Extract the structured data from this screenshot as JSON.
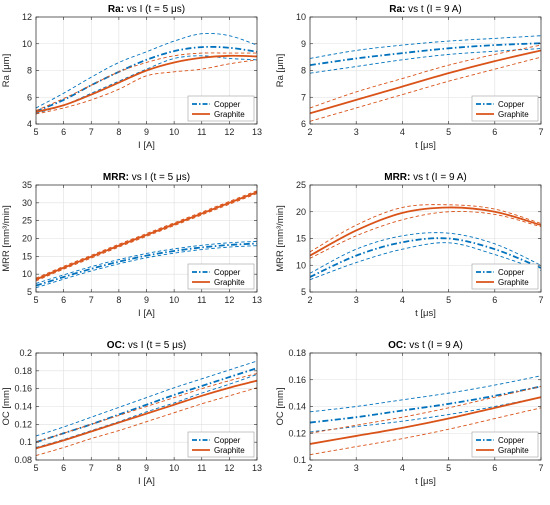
{
  "colors": {
    "copper": "#0072BD",
    "graphite": "#D95319",
    "axis": "#262626",
    "grid": "#dfdfdf"
  },
  "chart_data": [
    {
      "type": "line",
      "title_bold": "Ra:",
      "title_rest": " vs I (t = 5 μs)",
      "xlabel": "I [A]",
      "ylabel": "Ra [μm]",
      "xlim": [
        5,
        13
      ],
      "ylim": [
        4,
        12
      ],
      "xticks": [
        5,
        6,
        7,
        8,
        9,
        10,
        11,
        12,
        13
      ],
      "yticks": [
        4,
        6,
        8,
        10,
        12
      ],
      "grid": true,
      "legend_position": "bottom-right",
      "series": [
        {
          "name": "Copper",
          "key": "copper",
          "style": "dashdot",
          "x": [
            5,
            6,
            7,
            8,
            9,
            10,
            11,
            12,
            13
          ],
          "y": [
            4.95,
            5.8,
            6.9,
            7.9,
            8.8,
            9.45,
            9.75,
            9.7,
            9.4
          ],
          "lower": [
            4.8,
            5.4,
            6.3,
            7.2,
            8.1,
            8.9,
            9.1,
            8.9,
            8.8
          ],
          "upper": [
            5.2,
            6.3,
            7.5,
            8.6,
            9.4,
            10.2,
            10.75,
            10.6,
            9.9
          ]
        },
        {
          "name": "Graphite",
          "key": "graphite",
          "style": "solid",
          "x": [
            5,
            6,
            7,
            8,
            9,
            10,
            11,
            12,
            13
          ],
          "y": [
            4.9,
            5.4,
            6.2,
            7.1,
            8.0,
            8.6,
            8.95,
            9.1,
            9.05
          ],
          "lower": [
            4.75,
            5.2,
            5.8,
            6.6,
            7.6,
            7.9,
            8.1,
            8.5,
            8.8
          ],
          "upper": [
            5.0,
            5.9,
            6.9,
            7.9,
            8.6,
            9.1,
            9.3,
            9.3,
            9.3
          ]
        }
      ]
    },
    {
      "type": "line",
      "title_bold": "Ra:",
      "title_rest": " vs t (I = 9 A)",
      "xlabel": "t [μs]",
      "ylabel": "Ra [μm]",
      "xlim": [
        2,
        7
      ],
      "ylim": [
        6,
        10
      ],
      "xticks": [
        2,
        3,
        4,
        5,
        6,
        7
      ],
      "yticks": [
        6,
        7,
        8,
        9,
        10
      ],
      "grid": true,
      "legend_position": "bottom-right",
      "series": [
        {
          "name": "Copper",
          "key": "copper",
          "style": "dashdot",
          "x": [
            2,
            3,
            4,
            5,
            6,
            7
          ],
          "y": [
            8.2,
            8.45,
            8.65,
            8.83,
            8.95,
            9.02
          ],
          "lower": [
            7.9,
            8.15,
            8.4,
            8.6,
            8.72,
            8.82
          ],
          "upper": [
            8.45,
            8.75,
            8.95,
            9.1,
            9.2,
            9.3
          ]
        },
        {
          "name": "Graphite",
          "key": "graphite",
          "style": "solid",
          "x": [
            2,
            3,
            4,
            5,
            6,
            7
          ],
          "y": [
            6.4,
            6.9,
            7.4,
            7.9,
            8.35,
            8.75
          ],
          "lower": [
            6.1,
            6.6,
            7.1,
            7.6,
            8.05,
            8.5
          ],
          "upper": [
            6.6,
            7.2,
            7.7,
            8.2,
            8.6,
            8.95
          ]
        }
      ]
    },
    {
      "type": "line",
      "title_bold": "MRR:",
      "title_rest": " vs I (t = 5 μs)",
      "xlabel": "I [A]",
      "ylabel": "MRR [mm³/min]",
      "xlim": [
        5,
        13
      ],
      "ylim": [
        5,
        35
      ],
      "xticks": [
        5,
        6,
        7,
        8,
        9,
        10,
        11,
        12,
        13
      ],
      "yticks": [
        5,
        10,
        15,
        20,
        25,
        30,
        35
      ],
      "grid": true,
      "legend_position": "bottom-right",
      "series": [
        {
          "name": "Copper",
          "key": "copper",
          "style": "dashdot",
          "x": [
            5,
            6,
            7,
            8,
            9,
            10,
            11,
            12,
            13
          ],
          "y": [
            6.8,
            9.2,
            11.5,
            13.5,
            15.2,
            16.5,
            17.5,
            18.2,
            18.6
          ],
          "lower": [
            6.2,
            8.6,
            10.9,
            12.9,
            14.6,
            15.9,
            16.9,
            17.6,
            18.0
          ],
          "upper": [
            7.4,
            9.8,
            12.1,
            14.1,
            15.8,
            17.1,
            18.1,
            18.8,
            19.2
          ]
        },
        {
          "name": "Graphite",
          "key": "graphite",
          "style": "solid",
          "x": [
            5,
            6,
            7,
            8,
            9,
            10,
            11,
            12,
            13
          ],
          "y": [
            8.5,
            11.8,
            14.9,
            18.0,
            21.0,
            24.0,
            27.0,
            30.0,
            33.0
          ],
          "lower": [
            8.1,
            11.4,
            14.5,
            17.6,
            20.6,
            23.6,
            26.6,
            29.6,
            32.6
          ],
          "upper": [
            8.9,
            12.2,
            15.3,
            18.4,
            21.4,
            24.4,
            27.4,
            30.4,
            33.4
          ]
        }
      ]
    },
    {
      "type": "line",
      "title_bold": "MRR:",
      "title_rest": " vs t (I = 9 A)",
      "xlabel": "t [μs]",
      "ylabel": "MRR [mm³/min]",
      "xlim": [
        2,
        7
      ],
      "ylim": [
        5,
        25
      ],
      "xticks": [
        2,
        3,
        4,
        5,
        6,
        7
      ],
      "yticks": [
        5,
        10,
        15,
        20,
        25
      ],
      "grid": true,
      "legend_position": "bottom-right",
      "series": [
        {
          "name": "Copper",
          "key": "copper",
          "style": "dashdot",
          "x": [
            2,
            3,
            4,
            5,
            6,
            7
          ],
          "y": [
            7.8,
            11.8,
            14.3,
            15.0,
            13.0,
            9.5
          ],
          "lower": [
            7.3,
            10.5,
            13.0,
            14.2,
            12.0,
            9.0
          ],
          "upper": [
            8.5,
            13.0,
            15.5,
            16.0,
            14.0,
            10.0
          ]
        },
        {
          "name": "Graphite",
          "key": "graphite",
          "style": "solid",
          "x": [
            2,
            3,
            4,
            5,
            6,
            7
          ],
          "y": [
            11.8,
            16.5,
            19.8,
            20.8,
            20.0,
            17.5
          ],
          "lower": [
            11.3,
            15.5,
            18.5,
            20.0,
            19.5,
            17.2
          ],
          "upper": [
            12.5,
            17.5,
            20.8,
            21.3,
            20.5,
            17.8
          ]
        }
      ]
    },
    {
      "type": "line",
      "title_bold": "OC:",
      "title_rest": " vs I (t = 5 μs)",
      "xlabel": "I [A]",
      "ylabel": "OC [mm]",
      "xlim": [
        5,
        13
      ],
      "ylim": [
        0.08,
        0.2
      ],
      "xticks": [
        5,
        6,
        7,
        8,
        9,
        10,
        11,
        12,
        13
      ],
      "yticks": [
        0.08,
        0.1,
        0.12,
        0.14,
        0.16,
        0.18,
        0.2
      ],
      "ytick_labels": [
        "0.08",
        "0.1",
        "0.12",
        "0.14",
        "0.16",
        "0.18",
        "0.2"
      ],
      "grid": true,
      "legend_position": "bottom-right",
      "series": [
        {
          "name": "Copper",
          "key": "copper",
          "style": "dashdot",
          "x": [
            5,
            6,
            7,
            8,
            9,
            10,
            11,
            12,
            13
          ],
          "y": [
            0.1,
            0.11,
            0.12,
            0.131,
            0.142,
            0.153,
            0.163,
            0.173,
            0.183
          ],
          "lower": [
            0.094,
            0.103,
            0.113,
            0.123,
            0.134,
            0.144,
            0.155,
            0.165,
            0.176
          ],
          "upper": [
            0.107,
            0.117,
            0.128,
            0.139,
            0.15,
            0.161,
            0.171,
            0.181,
            0.191
          ]
        },
        {
          "name": "Graphite",
          "key": "graphite",
          "style": "solid",
          "x": [
            5,
            6,
            7,
            8,
            9,
            10,
            11,
            12,
            13
          ],
          "y": [
            0.093,
            0.102,
            0.112,
            0.122,
            0.132,
            0.142,
            0.152,
            0.161,
            0.169
          ],
          "lower": [
            0.085,
            0.094,
            0.104,
            0.113,
            0.123,
            0.133,
            0.143,
            0.152,
            0.161
          ],
          "upper": [
            0.1,
            0.11,
            0.12,
            0.13,
            0.14,
            0.15,
            0.16,
            0.169,
            0.177
          ]
        }
      ]
    },
    {
      "type": "line",
      "title_bold": "OC:",
      "title_rest": " vs t (I = 9 A)",
      "xlabel": "t [μs]",
      "ylabel": "OC [mm]",
      "xlim": [
        2,
        7
      ],
      "ylim": [
        0.1,
        0.18
      ],
      "xticks": [
        2,
        3,
        4,
        5,
        6,
        7
      ],
      "yticks": [
        0.1,
        0.12,
        0.14,
        0.16,
        0.18
      ],
      "ytick_labels": [
        "0.1",
        "0.12",
        "0.14",
        "0.16",
        "0.18"
      ],
      "grid": true,
      "legend_position": "bottom-right",
      "series": [
        {
          "name": "Copper",
          "key": "copper",
          "style": "dashdot",
          "x": [
            2,
            3,
            4,
            5,
            6,
            7
          ],
          "y": [
            0.128,
            0.132,
            0.137,
            0.142,
            0.148,
            0.155
          ],
          "lower": [
            0.121,
            0.125,
            0.129,
            0.134,
            0.14,
            0.147
          ],
          "upper": [
            0.136,
            0.14,
            0.145,
            0.15,
            0.156,
            0.163
          ]
        },
        {
          "name": "Graphite",
          "key": "graphite",
          "style": "solid",
          "x": [
            2,
            3,
            4,
            5,
            6,
            7
          ],
          "y": [
            0.112,
            0.118,
            0.124,
            0.131,
            0.139,
            0.147
          ],
          "lower": [
            0.104,
            0.11,
            0.116,
            0.123,
            0.131,
            0.139
          ],
          "upper": [
            0.12,
            0.126,
            0.132,
            0.139,
            0.147,
            0.155
          ]
        }
      ]
    }
  ]
}
